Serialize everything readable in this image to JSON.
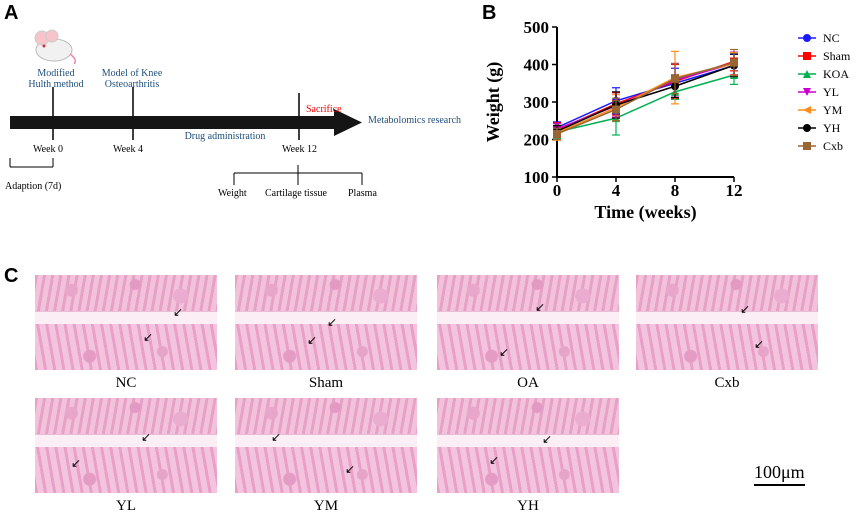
{
  "panels": {
    "a": "A",
    "b": "B",
    "c": "C"
  },
  "timeline": {
    "modified": "Modified",
    "hulth": "Hulth method",
    "model": "Model of Knee",
    "oa": "Osteoarthritis",
    "sacrifice": "Sacrifice",
    "drug": "Drug administration",
    "metabolomics": "Metabolomics research",
    "week0": "Week 0",
    "week4": "Week 4",
    "week12": "Week 12",
    "adaption": "Adaption (7d)",
    "weight": "Weight",
    "cartilage": "Cartilage tissue",
    "plasma": "Plasma"
  },
  "colors": {
    "NC": "#1a1aff",
    "Sham": "#ff0000",
    "KOA": "#00b050",
    "YL": "#cc00cc",
    "YM": "#ff8c1a",
    "YH": "#000000",
    "Cxb": "#996633"
  },
  "chart_data": {
    "type": "line",
    "xlabel": "Time (weeks)",
    "ylabel": "Weight (g)",
    "x": [
      0,
      4,
      8,
      12
    ],
    "xticks": [
      "0",
      "4",
      "8",
      "12"
    ],
    "yticks": [
      "100",
      "200",
      "300",
      "400",
      "500"
    ],
    "ylim": [
      100,
      500
    ],
    "xlim": [
      0,
      12
    ],
    "series": [
      {
        "name": "NC",
        "values": [
          232,
          303,
          350,
          397
        ],
        "err": [
          15,
          35,
          40,
          30
        ]
      },
      {
        "name": "Sham",
        "values": [
          225,
          295,
          355,
          408
        ],
        "err": [
          20,
          30,
          45,
          25
        ]
      },
      {
        "name": "KOA",
        "values": [
          220,
          257,
          327,
          372
        ],
        "err": [
          18,
          45,
          20,
          25
        ]
      },
      {
        "name": "YL",
        "values": [
          228,
          290,
          358,
          403
        ],
        "err": [
          15,
          30,
          45,
          30
        ]
      },
      {
        "name": "YM",
        "values": [
          218,
          285,
          365,
          402
        ],
        "err": [
          20,
          35,
          70,
          30
        ]
      },
      {
        "name": "YH",
        "values": [
          222,
          292,
          342,
          398
        ],
        "err": [
          15,
          35,
          30,
          30
        ]
      },
      {
        "name": "Cxb",
        "values": [
          215,
          280,
          362,
          405
        ],
        "err": [
          15,
          30,
          40,
          35
        ]
      }
    ]
  },
  "histology": {
    "labels": [
      "NC",
      "Sham",
      "OA",
      "Cxb",
      "YL",
      "YM",
      "YH"
    ],
    "scale_bar": "100μm"
  }
}
